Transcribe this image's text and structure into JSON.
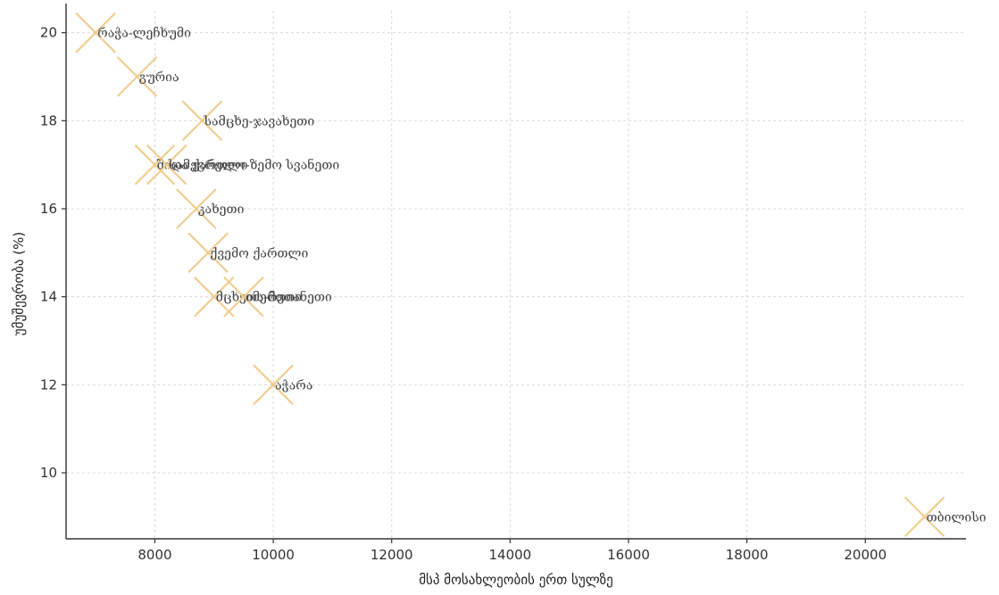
{
  "chart_data": {
    "type": "scatter",
    "title": "",
    "xlabel": "მსპ მოსახლეობის ერთ სულზე",
    "ylabel": "უმუშევრობა (%)",
    "xlim": [
      6500,
      21700
    ],
    "ylim": [
      8.5,
      20.5
    ],
    "xticks": [
      8000,
      10000,
      12000,
      14000,
      16000,
      18000,
      20000
    ],
    "yticks": [
      10,
      12,
      14,
      16,
      18,
      20
    ],
    "grid": true,
    "marker": "x",
    "marker_color": "#F0C987",
    "points": [
      {
        "label": "რაჭა-ლეჩხუმი",
        "x": 7000,
        "y": 20
      },
      {
        "label": "გურია",
        "x": 7700,
        "y": 19
      },
      {
        "label": "სამცხე-ჯავახეთი",
        "x": 8800,
        "y": 18
      },
      {
        "label": "შიდა ქართლი",
        "x": 8000,
        "y": 17
      },
      {
        "label": "სამეგრელო-ზემო სვანეთი",
        "x": 8200,
        "y": 17
      },
      {
        "label": "კახეთი",
        "x": 8700,
        "y": 16
      },
      {
        "label": "ქვემო ქართლი",
        "x": 8900,
        "y": 15
      },
      {
        "label": "მცხეთა-მთიანეთი",
        "x": 9000,
        "y": 14
      },
      {
        "label": "იმერეთი",
        "x": 9500,
        "y": 14
      },
      {
        "label": "აჭარა",
        "x": 10000,
        "y": 12
      },
      {
        "label": "თბილისი",
        "x": 21000,
        "y": 9
      }
    ]
  }
}
